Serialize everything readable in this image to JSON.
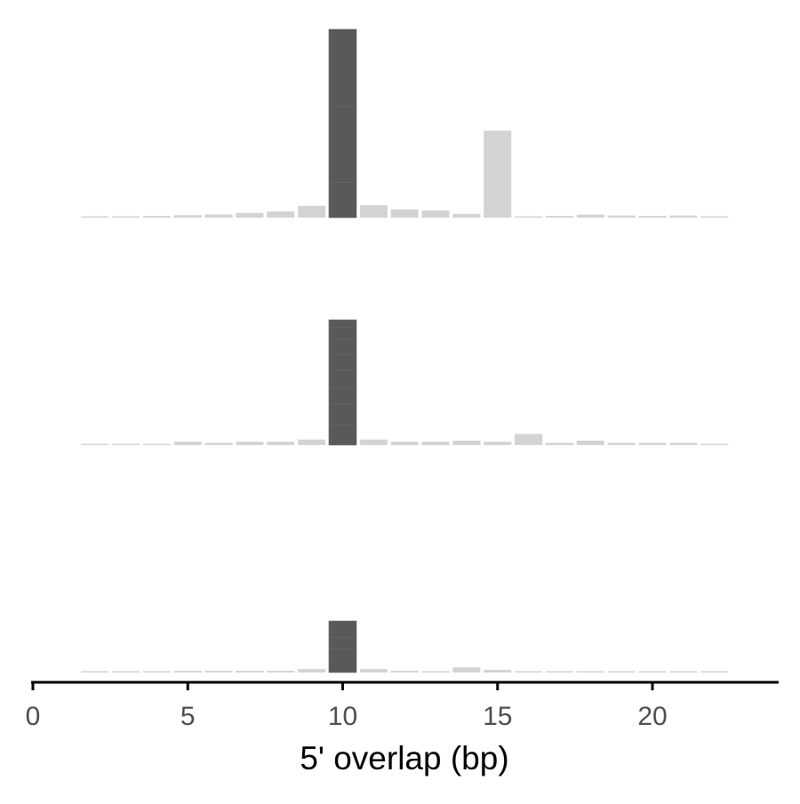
{
  "chart_data": {
    "type": "bar",
    "layout": "stacked panels (ridgeline), shared x-axis",
    "xlabel": "5' overlap (bp)",
    "ylabel": "",
    "xlim": [
      0,
      24
    ],
    "xticks": [
      0,
      5,
      10,
      15,
      20
    ],
    "x": [
      2,
      3,
      4,
      5,
      6,
      7,
      8,
      9,
      10,
      11,
      12,
      13,
      14,
      15,
      16,
      17,
      18,
      19,
      20,
      21,
      22
    ],
    "highlight_x": 10,
    "colors": {
      "highlight": "#595959",
      "other": "#d3d3d3"
    },
    "grid": false,
    "legend": "none",
    "panels": [
      {
        "ylim": [
          0,
          1
        ],
        "values": [
          0.005,
          0.007,
          0.009,
          0.013,
          0.017,
          0.025,
          0.033,
          0.063,
          1.0,
          0.066,
          0.044,
          0.038,
          0.02,
          0.462,
          0.007,
          0.009,
          0.016,
          0.011,
          0.009,
          0.011,
          0.003
        ],
        "segments_at_highlight": [
          0.186,
          0.405,
          0.405
        ]
      },
      {
        "ylim": [
          0,
          1
        ],
        "values": [
          0.007,
          0.007,
          0.009,
          0.027,
          0.018,
          0.027,
          0.027,
          0.044,
          1.0,
          0.044,
          0.027,
          0.027,
          0.035,
          0.027,
          0.089,
          0.018,
          0.035,
          0.018,
          0.018,
          0.018,
          0.004
        ],
        "segments_at_highlight": [
          0.159,
          0.168,
          0.133,
          0.142,
          0.124,
          0.124,
          0.089,
          0.062
        ]
      },
      {
        "ylim": [
          0,
          1
        ],
        "values": [
          0.017,
          0.017,
          0.017,
          0.033,
          0.033,
          0.033,
          0.033,
          0.067,
          1.0,
          0.067,
          0.033,
          0.017,
          0.1,
          0.05,
          0.017,
          0.017,
          0.017,
          0.017,
          0.017,
          0.017,
          0.017
        ],
        "segments_at_highlight": [
          0.46,
          0.22,
          0.32
        ]
      }
    ]
  }
}
